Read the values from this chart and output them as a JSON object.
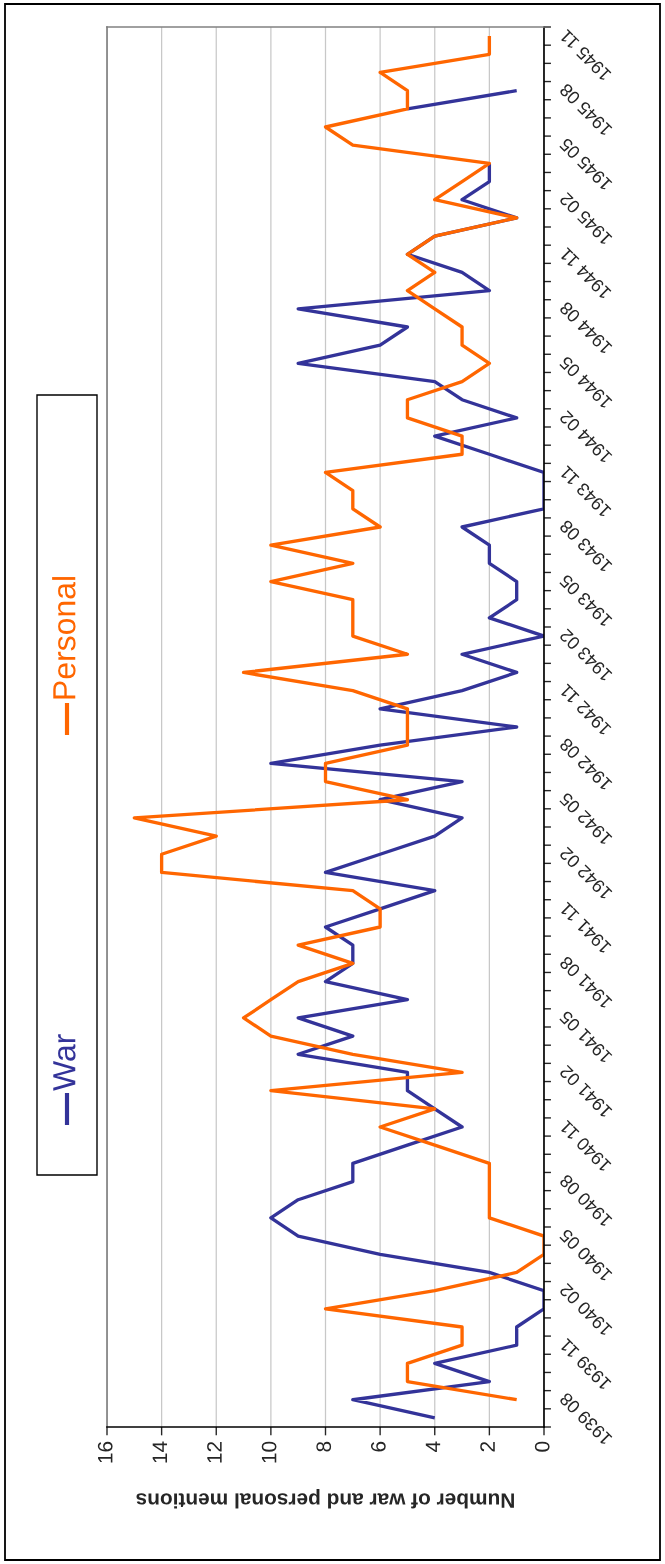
{
  "chart_data": {
    "type": "line",
    "orientation": "horizontal",
    "xlabel": "Number of war and personal mentions",
    "categories": [
      null,
      "1945 11",
      null,
      null,
      "1945 08",
      null,
      null,
      "1945 05",
      null,
      null,
      "1945 02",
      null,
      null,
      "1944 11",
      null,
      null,
      "1944 08",
      null,
      null,
      "1944 05",
      null,
      null,
      "1944 02",
      null,
      null,
      "1943 11",
      null,
      null,
      "1943 08",
      null,
      null,
      "1943 05",
      null,
      null,
      "1943 02",
      null,
      null,
      "1942 11",
      null,
      null,
      "1942 08",
      null,
      null,
      "1942 05",
      null,
      null,
      "1942 02",
      null,
      null,
      "1941 11",
      null,
      null,
      "1941 08",
      null,
      null,
      "1941 05",
      null,
      null,
      "1941 02",
      null,
      null,
      "1940 11",
      null,
      null,
      "1940 08",
      null,
      null,
      "1940 05",
      null,
      null,
      "1940 02",
      null,
      null,
      "1939 11",
      null,
      null,
      "1939 08"
    ],
    "series": [
      {
        "name": "War",
        "color": "#333399",
        "values": [
          null,
          null,
          null,
          1,
          5,
          null,
          null,
          2,
          2,
          3,
          1,
          4,
          5,
          3,
          2,
          9,
          5,
          6,
          9,
          4,
          3,
          1,
          4,
          2,
          0,
          0,
          0,
          3,
          2,
          2,
          1,
          1,
          2,
          0,
          3,
          1,
          3,
          6,
          1,
          6,
          10,
          3,
          6,
          3,
          4,
          6,
          8,
          4,
          6,
          8,
          7,
          7,
          8,
          5,
          9,
          7,
          9,
          5,
          5,
          4,
          3,
          5,
          7,
          7,
          9,
          10,
          9,
          6,
          2,
          0,
          0,
          1,
          1,
          4,
          2,
          7,
          4
        ]
      },
      {
        "name": "Personal",
        "color": "#ff6600",
        "values": [
          2,
          2,
          6,
          5,
          5,
          8,
          7,
          2,
          3,
          4,
          1,
          4,
          5,
          4,
          5,
          4,
          3,
          3,
          2,
          3,
          5,
          5,
          3,
          3,
          8,
          7,
          7,
          6,
          10,
          7,
          10,
          7,
          7,
          7,
          5,
          11,
          7,
          5,
          5,
          5,
          8,
          8,
          5,
          15,
          12,
          14,
          14,
          7,
          6,
          6,
          9,
          7,
          9,
          10,
          11,
          10,
          7,
          3,
          10,
          4,
          6,
          4,
          2,
          2,
          2,
          2,
          0,
          0,
          1,
          4,
          8,
          3,
          3,
          5,
          5,
          1,
          null
        ]
      }
    ],
    "xlim": [
      16,
      0
    ],
    "xticks": [
      16,
      14,
      12,
      10,
      8,
      6,
      4,
      2,
      0
    ],
    "grid": "x",
    "legend": "left"
  }
}
